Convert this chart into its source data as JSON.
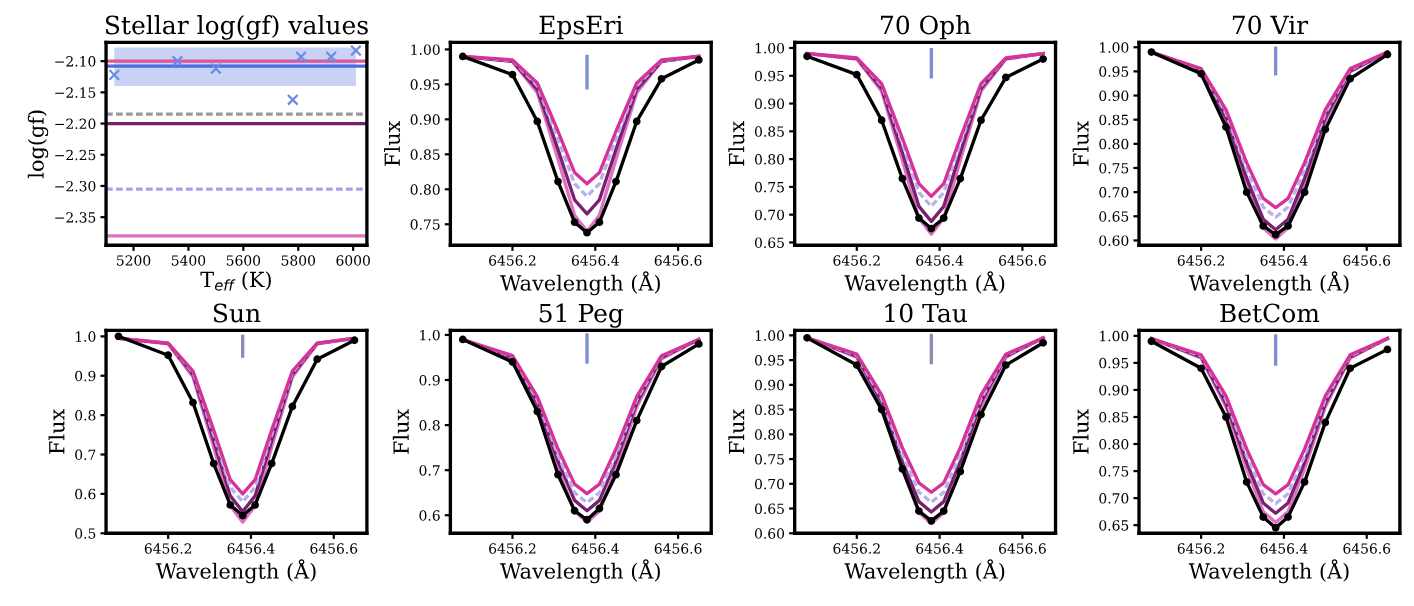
{
  "chart_data": [
    {
      "type": "scatter",
      "title": "Stellar log(gf) values",
      "xlabel": "T$_{eff}$ (K)",
      "ylabel": "log(gf)",
      "xlim": [
        5100,
        6050
      ],
      "xticks": [
        5200,
        5400,
        5600,
        5800,
        6000
      ],
      "ylim": [
        -2.395,
        -2.07
      ],
      "yticks": [
        {
          "value": -2.1,
          "label": "−2.10"
        },
        {
          "value": -2.15,
          "label": "−2.15"
        },
        {
          "value": -2.2,
          "label": "−2.20"
        },
        {
          "value": -2.25,
          "label": "−2.25"
        },
        {
          "value": -2.3,
          "label": "−2.30"
        },
        {
          "value": -2.35,
          "label": "−2.35"
        }
      ],
      "series": [
        {
          "x": [
            5130,
            5360,
            5500,
            5780,
            5810,
            5920,
            6010
          ],
          "values": [
            -2.122,
            -2.1,
            -2.112,
            -2.162,
            -2.093,
            -2.093,
            -2.083
          ],
          "color": "#6b8ae6",
          "marker": "cross"
        }
      ],
      "bands": [
        {
          "axis": "y",
          "from": -2.14,
          "to": -2.078,
          "color": "#c8d2f5"
        }
      ],
      "ref_lines": [
        {
          "axis": "y",
          "value": -2.1,
          "color": "#e0559a",
          "line_style": "solid"
        },
        {
          "axis": "y",
          "value": -2.108,
          "color": "#4a6ee0",
          "line_style": "solid"
        },
        {
          "axis": "y",
          "value": -2.185,
          "color": "#999999",
          "line_style": "dashed"
        },
        {
          "axis": "y",
          "value": -2.2,
          "color": "#7a1f6a",
          "line_style": "solid"
        },
        {
          "axis": "y",
          "value": -2.305,
          "color": "#a9a0e8",
          "line_style": "dashed"
        },
        {
          "axis": "y",
          "value": -2.38,
          "color": "#e070c0",
          "line_style": "solid"
        }
      ],
      "grid": false
    },
    {
      "type": "line",
      "title": "EpsEri",
      "xlabel": "Wavelength (Å)",
      "ylabel": "Flux",
      "xlim": [
        6456.05,
        6456.68
      ],
      "xticks": [
        6456.2,
        6456.4,
        6456.6
      ],
      "ylim": [
        0.72,
        1.01
      ],
      "yticks": [
        {
          "value": 0.75,
          "label": "0.75"
        },
        {
          "value": 0.8,
          "label": "0.80"
        },
        {
          "value": 0.85,
          "label": "0.85"
        },
        {
          "value": 0.9,
          "label": "0.90"
        },
        {
          "value": 0.95,
          "label": "0.95"
        },
        {
          "value": 1.0,
          "label": "1.00"
        }
      ],
      "x": [
        6456.08,
        6456.2,
        6456.26,
        6456.31,
        6456.35,
        6456.38,
        6456.41,
        6456.45,
        6456.5,
        6456.56,
        6456.65
      ],
      "series": [
        {
          "color": "#e070c0",
          "values": [
            0.99,
            0.983,
            0.938,
            0.843,
            0.763,
            0.74,
            0.763,
            0.843,
            0.938,
            0.983,
            0.99
          ],
          "line_style": "solid",
          "marker": "none"
        },
        {
          "color": "#7a2070",
          "values": [
            0.99,
            0.983,
            0.943,
            0.857,
            0.785,
            0.765,
            0.785,
            0.857,
            0.943,
            0.983,
            0.99
          ],
          "line_style": "solid",
          "marker": "none"
        },
        {
          "color": "#b8b0e8",
          "values": [
            0.99,
            0.984,
            0.948,
            0.872,
            0.808,
            0.79,
            0.808,
            0.872,
            0.948,
            0.984,
            0.99
          ],
          "line_style": "dashed",
          "marker": "none"
        },
        {
          "color": "#d6329a",
          "values": [
            0.99,
            0.985,
            0.952,
            0.883,
            0.824,
            0.808,
            0.824,
            0.883,
            0.952,
            0.985,
            0.99
          ],
          "line_style": "solid",
          "marker": "none"
        },
        {
          "color": "#000000",
          "values": [
            0.99,
            0.964,
            0.897,
            0.811,
            0.753,
            0.738,
            0.753,
            0.811,
            0.897,
            0.958,
            0.985
          ],
          "line_style": "solid",
          "marker": "circle"
        },
        {
          "color": "#7b8fd6",
          "x": [
            6456.38,
            6456.38
          ],
          "values": [
            0.945,
            0.99
          ],
          "line_style": "solid",
          "marker": "none"
        }
      ],
      "grid": false
    },
    {
      "type": "line",
      "title": "70 Oph",
      "xlabel": "Wavelength (Å)",
      "ylabel": "Flux",
      "xlim": [
        6456.05,
        6456.68
      ],
      "xticks": [
        6456.2,
        6456.4,
        6456.6
      ],
      "ylim": [
        0.645,
        1.01
      ],
      "yticks": [
        {
          "value": 0.65,
          "label": "0.65"
        },
        {
          "value": 0.7,
          "label": "0.70"
        },
        {
          "value": 0.75,
          "label": "0.75"
        },
        {
          "value": 0.8,
          "label": "0.80"
        },
        {
          "value": 0.85,
          "label": "0.85"
        },
        {
          "value": 0.9,
          "label": "0.90"
        },
        {
          "value": 0.95,
          "label": "0.95"
        },
        {
          "value": 1.0,
          "label": "1.00"
        }
      ],
      "x": [
        6456.08,
        6456.2,
        6456.26,
        6456.31,
        6456.35,
        6456.38,
        6456.41,
        6456.45,
        6456.5,
        6456.56,
        6456.65
      ],
      "series": [
        {
          "color": "#e070c0",
          "values": [
            0.99,
            0.98,
            0.922,
            0.798,
            0.694,
            0.665,
            0.694,
            0.798,
            0.922,
            0.98,
            0.99
          ],
          "line_style": "solid",
          "marker": "none"
        },
        {
          "color": "#7a2070",
          "values": [
            0.99,
            0.981,
            0.927,
            0.812,
            0.715,
            0.688,
            0.715,
            0.812,
            0.927,
            0.981,
            0.99
          ],
          "line_style": "solid",
          "marker": "none"
        },
        {
          "color": "#b8b0e8",
          "values": [
            0.99,
            0.982,
            0.932,
            0.828,
            0.74,
            0.715,
            0.74,
            0.828,
            0.932,
            0.982,
            0.99
          ],
          "line_style": "dashed",
          "marker": "none"
        },
        {
          "color": "#d6329a",
          "values": [
            0.99,
            0.982,
            0.936,
            0.838,
            0.756,
            0.733,
            0.756,
            0.838,
            0.936,
            0.982,
            0.99
          ],
          "line_style": "solid",
          "marker": "none"
        },
        {
          "color": "#000000",
          "values": [
            0.985,
            0.952,
            0.87,
            0.765,
            0.694,
            0.675,
            0.694,
            0.765,
            0.87,
            0.947,
            0.98
          ],
          "line_style": "solid",
          "marker": "circle"
        },
        {
          "color": "#7b8fd6",
          "x": [
            6456.38,
            6456.38
          ],
          "values": [
            0.948,
            0.997
          ],
          "line_style": "solid",
          "marker": "none"
        }
      ],
      "grid": false
    },
    {
      "type": "line",
      "title": "70 Vir",
      "xlabel": "Wavelength (Å)",
      "ylabel": "Flux",
      "xlim": [
        6456.05,
        6456.68
      ],
      "xticks": [
        6456.2,
        6456.4,
        6456.6
      ],
      "ylim": [
        0.59,
        1.01
      ],
      "yticks": [
        {
          "value": 0.6,
          "label": "0.60"
        },
        {
          "value": 0.65,
          "label": "0.65"
        },
        {
          "value": 0.7,
          "label": "0.70"
        },
        {
          "value": 0.75,
          "label": "0.75"
        },
        {
          "value": 0.8,
          "label": "0.80"
        },
        {
          "value": 0.85,
          "label": "0.85"
        },
        {
          "value": 0.9,
          "label": "0.90"
        },
        {
          "value": 0.95,
          "label": "0.95"
        },
        {
          "value": 1.0,
          "label": "1.00"
        }
      ],
      "x": [
        6456.08,
        6456.2,
        6456.26,
        6456.31,
        6456.35,
        6456.38,
        6456.41,
        6456.45,
        6456.5,
        6456.56,
        6456.65
      ],
      "series": [
        {
          "color": "#e070c0",
          "values": [
            0.99,
            0.949,
            0.847,
            0.715,
            0.626,
            0.603,
            0.626,
            0.715,
            0.847,
            0.949,
            0.99
          ],
          "line_style": "solid",
          "marker": "none"
        },
        {
          "color": "#7a2070",
          "values": [
            0.99,
            0.951,
            0.854,
            0.729,
            0.644,
            0.622,
            0.644,
            0.729,
            0.854,
            0.951,
            0.99
          ],
          "line_style": "solid",
          "marker": "none"
        },
        {
          "color": "#b8b0e8",
          "values": [
            0.99,
            0.954,
            0.863,
            0.747,
            0.669,
            0.648,
            0.669,
            0.747,
            0.863,
            0.954,
            0.99
          ],
          "line_style": "dashed",
          "marker": "none"
        },
        {
          "color": "#d6329a",
          "values": [
            0.99,
            0.956,
            0.871,
            0.761,
            0.687,
            0.668,
            0.687,
            0.761,
            0.871,
            0.956,
            0.99
          ],
          "line_style": "solid",
          "marker": "none"
        },
        {
          "color": "#000000",
          "values": [
            0.99,
            0.945,
            0.835,
            0.7,
            0.63,
            0.612,
            0.63,
            0.7,
            0.83,
            0.935,
            0.985
          ],
          "line_style": "solid",
          "marker": "circle"
        },
        {
          "color": "#7b8fd6",
          "x": [
            6456.38,
            6456.38
          ],
          "values": [
            0.945,
            0.998
          ],
          "line_style": "solid",
          "marker": "none"
        }
      ],
      "grid": false
    },
    {
      "type": "line",
      "title": "Sun",
      "xlabel": "Wavelength (Å)",
      "ylabel": "Flux",
      "xlim": [
        6456.05,
        6456.68
      ],
      "xticks": [
        6456.2,
        6456.4,
        6456.6
      ],
      "ylim": [
        0.5,
        1.015
      ],
      "yticks": [
        0.5,
        0.6,
        0.7,
        0.8,
        0.9,
        {
          "value": 1.0,
          "label": "1.0"
        }
      ],
      "x": [
        6456.08,
        6456.2,
        6456.26,
        6456.31,
        6456.35,
        6456.38,
        6456.41,
        6456.45,
        6456.5,
        6456.56,
        6456.65
      ],
      "series": [
        {
          "color": "#e070c0",
          "values": [
            0.995,
            0.981,
            0.897,
            0.719,
            0.57,
            0.528,
            0.57,
            0.719,
            0.897,
            0.981,
            0.995
          ],
          "line_style": "solid",
          "marker": "none"
        },
        {
          "color": "#7a2070",
          "values": [
            0.995,
            0.982,
            0.903,
            0.735,
            0.595,
            0.555,
            0.595,
            0.735,
            0.903,
            0.982,
            0.995
          ],
          "line_style": "solid",
          "marker": "none"
        },
        {
          "color": "#b8b0e8",
          "values": [
            0.995,
            0.983,
            0.908,
            0.75,
            0.617,
            0.58,
            0.617,
            0.75,
            0.908,
            0.983,
            0.995
          ],
          "line_style": "dashed",
          "marker": "none"
        },
        {
          "color": "#d6329a",
          "values": [
            0.995,
            0.983,
            0.912,
            0.762,
            0.636,
            0.6,
            0.636,
            0.762,
            0.912,
            0.983,
            0.995
          ],
          "line_style": "solid",
          "marker": "none"
        },
        {
          "color": "#000000",
          "values": [
            1.0,
            0.952,
            0.832,
            0.677,
            0.572,
            0.545,
            0.572,
            0.677,
            0.822,
            0.942,
            0.99
          ],
          "line_style": "solid",
          "marker": "circle"
        },
        {
          "color": "#8c8cb0",
          "x": [
            6456.38,
            6456.38
          ],
          "values": [
            0.95,
            1.0
          ],
          "line_style": "solid",
          "marker": "none"
        }
      ],
      "grid": false
    },
    {
      "type": "line",
      "title": "51 Peg",
      "xlabel": "Wavelength (Å)",
      "ylabel": "Flux",
      "xlim": [
        6456.05,
        6456.68
      ],
      "xticks": [
        6456.2,
        6456.4,
        6456.6
      ],
      "ylim": [
        0.56,
        1.01
      ],
      "yticks": [
        0.6,
        0.7,
        0.8,
        0.9,
        {
          "value": 1.0,
          "label": "1.0"
        }
      ],
      "x": [
        6456.08,
        6456.2,
        6456.26,
        6456.31,
        6456.35,
        6456.38,
        6456.41,
        6456.45,
        6456.5,
        6456.56,
        6456.65
      ],
      "series": [
        {
          "color": "#e070c0",
          "values": [
            0.99,
            0.947,
            0.84,
            0.702,
            0.609,
            0.585,
            0.609,
            0.702,
            0.84,
            0.947,
            0.99
          ],
          "line_style": "solid",
          "marker": "none"
        },
        {
          "color": "#7a2070",
          "values": [
            0.99,
            0.95,
            0.849,
            0.72,
            0.633,
            0.61,
            0.633,
            0.72,
            0.849,
            0.95,
            0.99
          ],
          "line_style": "solid",
          "marker": "none"
        },
        {
          "color": "#b8b0e8",
          "values": [
            0.99,
            0.952,
            0.856,
            0.733,
            0.65,
            0.628,
            0.65,
            0.733,
            0.856,
            0.952,
            0.99
          ],
          "line_style": "dashed",
          "marker": "none"
        },
        {
          "color": "#d6329a",
          "values": [
            0.99,
            0.954,
            0.863,
            0.747,
            0.669,
            0.648,
            0.669,
            0.747,
            0.863,
            0.954,
            0.99
          ],
          "line_style": "solid",
          "marker": "none"
        },
        {
          "color": "#000000",
          "values": [
            0.99,
            0.94,
            0.83,
            0.69,
            0.61,
            0.59,
            0.615,
            0.69,
            0.81,
            0.93,
            0.98
          ],
          "line_style": "solid",
          "marker": "circle"
        },
        {
          "color": "#7b8fd6",
          "x": [
            6456.38,
            6456.38
          ],
          "values": [
            0.94,
            1.0
          ],
          "line_style": "solid",
          "marker": "none"
        }
      ],
      "grid": false
    },
    {
      "type": "line",
      "title": "10 Tau",
      "xlabel": "Wavelength (Å)",
      "ylabel": "Flux",
      "xlim": [
        6456.05,
        6456.68
      ],
      "xticks": [
        6456.2,
        6456.4,
        6456.6
      ],
      "ylim": [
        0.6,
        1.01
      ],
      "yticks": [
        {
          "value": 0.6,
          "label": "0.60"
        },
        {
          "value": 0.65,
          "label": "0.65"
        },
        {
          "value": 0.7,
          "label": "0.70"
        },
        {
          "value": 0.75,
          "label": "0.75"
        },
        {
          "value": 0.8,
          "label": "0.80"
        },
        {
          "value": 0.85,
          "label": "0.85"
        },
        {
          "value": 0.9,
          "label": "0.90"
        },
        {
          "value": 0.95,
          "label": "0.95"
        },
        {
          "value": 1.0,
          "label": "1.00"
        }
      ],
      "x": [
        6456.08,
        6456.2,
        6456.26,
        6456.31,
        6456.35,
        6456.38,
        6456.41,
        6456.45,
        6456.5,
        6456.56,
        6456.65
      ],
      "series": [
        {
          "color": "#e070c0",
          "values": [
            0.995,
            0.956,
            0.856,
            0.729,
            0.642,
            0.62,
            0.642,
            0.729,
            0.856,
            0.956,
            0.995
          ],
          "line_style": "solid",
          "marker": "none"
        },
        {
          "color": "#7a2070",
          "values": [
            0.995,
            0.958,
            0.865,
            0.745,
            0.664,
            0.643,
            0.664,
            0.745,
            0.865,
            0.958,
            0.995
          ],
          "line_style": "solid",
          "marker": "none"
        },
        {
          "color": "#b8b0e8",
          "values": [
            0.995,
            0.96,
            0.872,
            0.759,
            0.683,
            0.663,
            0.683,
            0.759,
            0.872,
            0.96,
            0.995
          ],
          "line_style": "dashed",
          "marker": "none"
        },
        {
          "color": "#d6329a",
          "values": [
            0.995,
            0.962,
            0.88,
            0.773,
            0.702,
            0.683,
            0.702,
            0.773,
            0.88,
            0.962,
            0.995
          ],
          "line_style": "solid",
          "marker": "none"
        },
        {
          "color": "#000000",
          "values": [
            0.995,
            0.94,
            0.85,
            0.73,
            0.645,
            0.625,
            0.645,
            0.725,
            0.84,
            0.94,
            0.985
          ],
          "line_style": "solid",
          "marker": "circle"
        },
        {
          "color": "#8c8cb0",
          "x": [
            6456.38,
            6456.38
          ],
          "values": [
            0.945,
            1.0
          ],
          "line_style": "solid",
          "marker": "none"
        }
      ],
      "grid": false
    },
    {
      "type": "line",
      "title": "BetCom",
      "xlabel": "Wavelength (Å)",
      "ylabel": "Flux",
      "xlim": [
        6456.05,
        6456.68
      ],
      "xticks": [
        6456.2,
        6456.4,
        6456.6
      ],
      "ylim": [
        0.635,
        1.01
      ],
      "yticks": [
        {
          "value": 0.65,
          "label": "0.65"
        },
        {
          "value": 0.7,
          "label": "0.70"
        },
        {
          "value": 0.75,
          "label": "0.75"
        },
        {
          "value": 0.8,
          "label": "0.80"
        },
        {
          "value": 0.85,
          "label": "0.85"
        },
        {
          "value": 0.9,
          "label": "0.90"
        },
        {
          "value": 0.95,
          "label": "0.95"
        },
        {
          "value": 1.0,
          "label": "1.00"
        }
      ],
      "x": [
        6456.08,
        6456.2,
        6456.26,
        6456.31,
        6456.35,
        6456.38,
        6456.41,
        6456.45,
        6456.5,
        6456.56,
        6456.65
      ],
      "series": [
        {
          "color": "#e070c0",
          "values": [
            0.995,
            0.959,
            0.869,
            0.754,
            0.675,
            0.655,
            0.675,
            0.754,
            0.869,
            0.959,
            0.995
          ],
          "line_style": "solid",
          "marker": "none"
        },
        {
          "color": "#7a2070",
          "values": [
            0.995,
            0.961,
            0.875,
            0.766,
            0.691,
            0.672,
            0.691,
            0.766,
            0.875,
            0.961,
            0.995
          ],
          "line_style": "solid",
          "marker": "none"
        },
        {
          "color": "#b8b0e8",
          "values": [
            0.995,
            0.963,
            0.882,
            0.778,
            0.708,
            0.69,
            0.708,
            0.778,
            0.882,
            0.963,
            0.995
          ],
          "line_style": "dashed",
          "marker": "none"
        },
        {
          "color": "#d6329a",
          "values": [
            0.995,
            0.965,
            0.889,
            0.791,
            0.725,
            0.708,
            0.725,
            0.791,
            0.889,
            0.965,
            0.995
          ],
          "line_style": "solid",
          "marker": "none"
        },
        {
          "color": "#000000",
          "values": [
            0.99,
            0.94,
            0.85,
            0.73,
            0.665,
            0.645,
            0.665,
            0.73,
            0.84,
            0.94,
            0.975
          ],
          "line_style": "solid",
          "marker": "circle"
        },
        {
          "color": "#7b8fd6",
          "x": [
            6456.38,
            6456.38
          ],
          "values": [
            0.948,
            1.0
          ],
          "line_style": "solid",
          "marker": "none"
        }
      ],
      "grid": false
    }
  ]
}
